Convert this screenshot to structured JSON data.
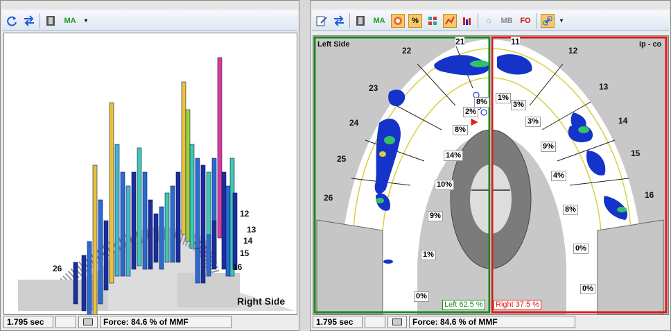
{
  "left_pane": {
    "toolbar_ma": "MA",
    "tooth_labels": [
      "12",
      "13",
      "14",
      "15",
      "16",
      "26"
    ],
    "side_label": "Right Side",
    "status_time": "1.795 sec",
    "status_force": "Force: 84.6 % of MMF"
  },
  "right_pane": {
    "toolbar": {
      "ma": "MA",
      "pct": "%",
      "mb": "MB",
      "fo": "FO"
    },
    "left_side_label": "Left Side",
    "ip_co_label": "ip - co",
    "tooth_labels": [
      "21",
      "11",
      "22",
      "12",
      "23",
      "13",
      "24",
      "14",
      "25",
      "15",
      "26",
      "16"
    ],
    "percent_labels": [
      "8%",
      "1%",
      "3%",
      "2%",
      "3%",
      "8%",
      "9%",
      "14%",
      "4%",
      "10%",
      "9%",
      "8%",
      "1%",
      "0%",
      "0%",
      "0%"
    ],
    "left_total": "Left 62.5 %",
    "right_total": "Right 37.5 %",
    "status_time": "1.795 sec",
    "status_force": "Force: 84.6 % of MMF"
  },
  "colors": {
    "left_frame": "#1e8a1e",
    "right_frame": "#e01818",
    "heat_blue": "#1533c9",
    "heat_green": "#34c06a"
  }
}
